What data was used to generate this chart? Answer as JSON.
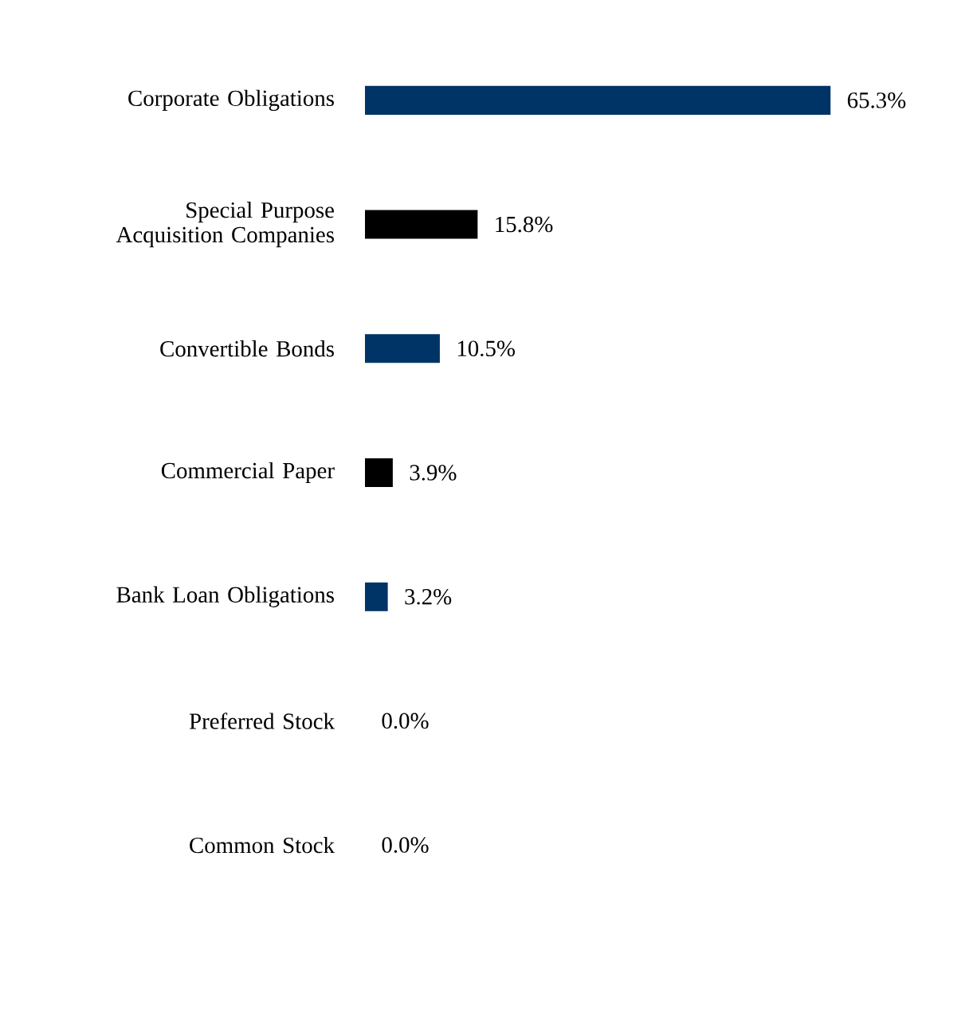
{
  "chart_data": {
    "type": "bar",
    "orientation": "horizontal",
    "categories": [
      "Corporate Obligations",
      "Special Purpose Acquisition Companies",
      "Convertible Bonds",
      "Commercial Paper",
      "Bank Loan Obligations",
      "Preferred Stock",
      "Common Stock"
    ],
    "values": [
      65.3,
      15.8,
      10.5,
      3.9,
      3.2,
      0.0,
      0.0
    ],
    "colors": [
      "#003366",
      "#000000",
      "#003366",
      "#000000",
      "#003366",
      "#000000",
      "#003366"
    ],
    "value_labels": [
      "65.3%",
      "15.8%",
      "10.5%",
      "3.9%",
      "3.2%",
      "0.0%",
      "0.0%"
    ]
  }
}
